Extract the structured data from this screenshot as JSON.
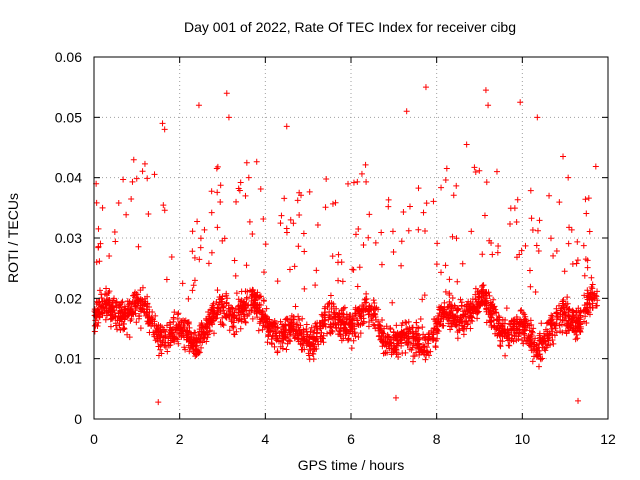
{
  "chart_data": {
    "type": "scatter",
    "title": "Day 001 of 2022, Rate Of TEC Index for receiver cibg",
    "xlabel": "GPS time / hours",
    "ylabel": "ROTI / TECUs",
    "xlim": [
      0,
      12
    ],
    "ylim": [
      0,
      0.06
    ],
    "xticks": [
      0,
      2,
      4,
      6,
      8,
      10,
      12
    ],
    "xtick_labels": [
      "0",
      "2",
      "4",
      "6",
      "8",
      "10",
      "12"
    ],
    "yticks": [
      0,
      0.01,
      0.02,
      0.03,
      0.04,
      0.05,
      0.06
    ],
    "ytick_labels": [
      "0",
      "0.01",
      "0.02",
      "0.03",
      "0.04",
      "0.05",
      "0.06"
    ],
    "grid": true,
    "marker": "+",
    "marker_color": "#ff0000",
    "series": [
      {
        "name": "ROTI",
        "x_range": [
          0.0,
          11.75
        ],
        "typical_band": [
          0.008,
          0.025
        ],
        "median_approx": 0.016,
        "notable_points": [
          {
            "x": 0.05,
            "y": 0.039
          },
          {
            "x": 0.2,
            "y": 0.035
          },
          {
            "x": 1.6,
            "y": 0.049
          },
          {
            "x": 1.65,
            "y": 0.048
          },
          {
            "x": 2.45,
            "y": 0.052
          },
          {
            "x": 3.1,
            "y": 0.054
          },
          {
            "x": 3.15,
            "y": 0.05
          },
          {
            "x": 4.5,
            "y": 0.0485
          },
          {
            "x": 7.3,
            "y": 0.051
          },
          {
            "x": 7.75,
            "y": 0.055
          },
          {
            "x": 8.7,
            "y": 0.0455
          },
          {
            "x": 9.15,
            "y": 0.0545
          },
          {
            "x": 9.2,
            "y": 0.052
          },
          {
            "x": 9.95,
            "y": 0.0525
          },
          {
            "x": 10.35,
            "y": 0.05
          },
          {
            "x": 10.95,
            "y": 0.0435
          },
          {
            "x": 1.5,
            "y": 0.0028
          },
          {
            "x": 7.05,
            "y": 0.0035
          },
          {
            "x": 11.3,
            "y": 0.003
          }
        ]
      }
    ]
  }
}
